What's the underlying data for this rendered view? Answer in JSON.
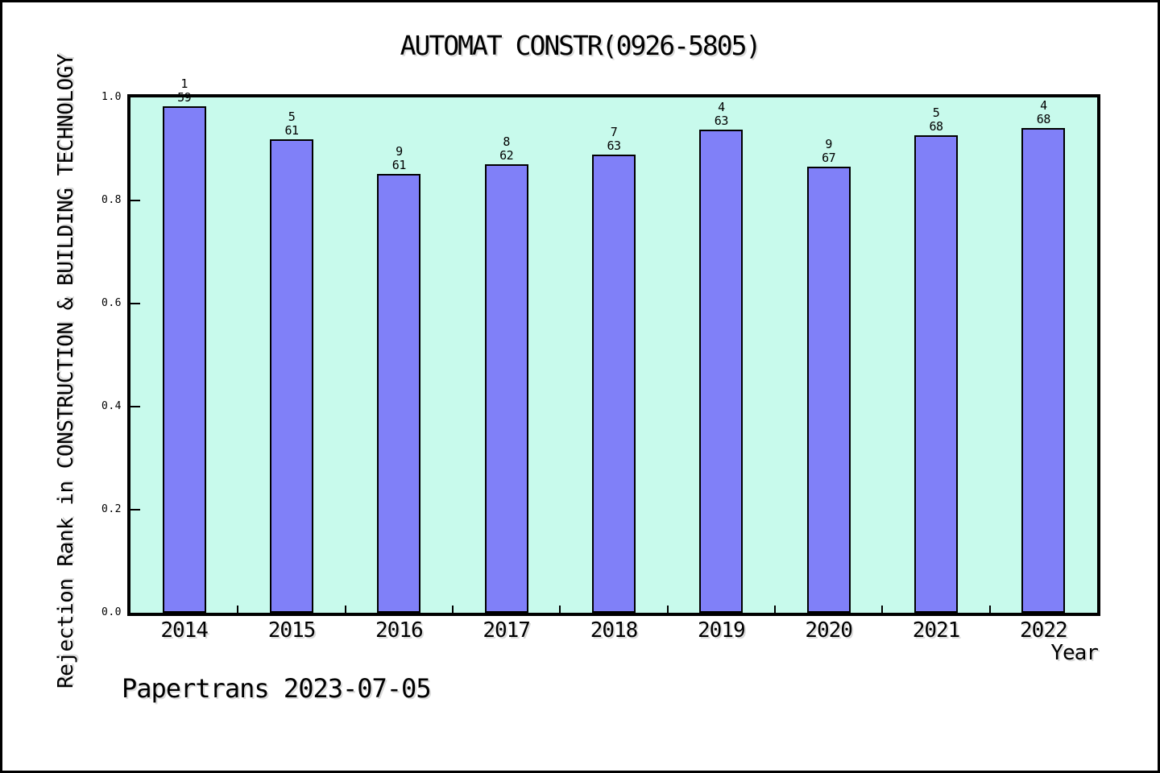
{
  "chart_data": {
    "type": "bar",
    "title": "AUTOMAT CONSTR(0926-5805)",
    "xlabel": "Year",
    "ylabel": "Rejection Rank in CONSTRUCTION & BUILDING TECHNOLOGY",
    "categories": [
      "2014",
      "2015",
      "2016",
      "2017",
      "2018",
      "2019",
      "2020",
      "2021",
      "2022"
    ],
    "values": [
      0.983,
      0.918,
      0.852,
      0.871,
      0.889,
      0.937,
      0.866,
      0.926,
      0.941
    ],
    "bar_top_labels": [
      [
        "1",
        "59"
      ],
      [
        "5",
        "61"
      ],
      [
        "9",
        "61"
      ],
      [
        "8",
        "62"
      ],
      [
        "7",
        "63"
      ],
      [
        "4",
        "63"
      ],
      [
        "9",
        "67"
      ],
      [
        "5",
        "68"
      ],
      [
        "4",
        "68"
      ]
    ],
    "ylim": [
      0.0,
      1.0
    ],
    "ytick_labels": [
      "0.0",
      "0.2",
      "0.4",
      "0.6",
      "0.8",
      "1.0"
    ],
    "grid": false,
    "legend": null,
    "colors": {
      "bar_fill": "#8080F8",
      "bar_edge": "#000000",
      "plot_bg": "#C8FAEC",
      "page_bg": "#FFFFFF",
      "frame": "#000000",
      "text": "#000000"
    },
    "annotations": [
      "Papertrans 2023-07-05"
    ]
  }
}
